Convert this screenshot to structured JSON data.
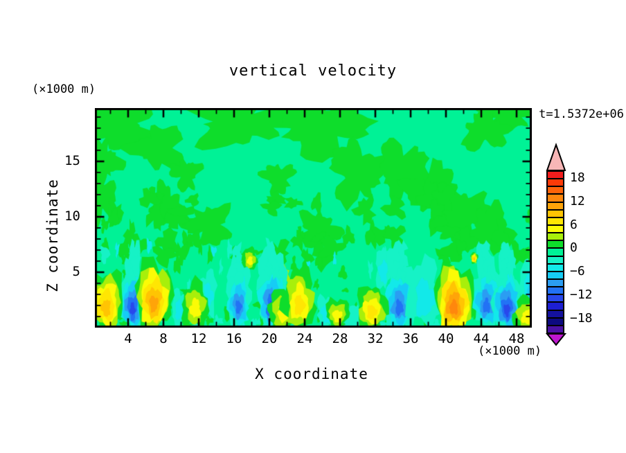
{
  "title": "vertical velocity",
  "time_label": "t=1.5372e+06",
  "axes": {
    "x_label": "X coordinate",
    "y_label": "Z coordinate",
    "x_unit_label": "(×1000 m)",
    "y_unit_label": "(×1000 m)",
    "x_ticks": [
      4,
      8,
      12,
      16,
      20,
      24,
      28,
      32,
      36,
      40,
      44,
      48
    ],
    "y_ticks": [
      5,
      10,
      15
    ],
    "x_minor_step": 2,
    "y_minor_step": 1,
    "x_range": [
      0.2,
      49.7
    ],
    "y_range": [
      0,
      19.8
    ]
  },
  "colorbar": {
    "labels": [
      "18",
      "12",
      "6",
      "0",
      "−6",
      "−12",
      "−18"
    ],
    "contour_interval": 2,
    "cell_colors": [
      "#f21d1d",
      "#fc3a08",
      "#ff6309",
      "#ff870d",
      "#ffa409",
      "#ffc403",
      "#ffe603",
      "#fbfb06",
      "#a8ef0b",
      "#0edd2b",
      "#00f296",
      "#16f2c6",
      "#12e9e9",
      "#16ccf5",
      "#2b9df2",
      "#2272f5",
      "#2848ec",
      "#1d1fd2",
      "#14119e",
      "#0d0a80",
      "#4c11a5"
    ],
    "over_arrow_color": "#f7b6b6",
    "under_arrow_color": "#bf17cf"
  },
  "chart_data": {
    "type": "filled_contour",
    "field_name": "vertical velocity",
    "background_band": [
      -2,
      0
    ],
    "contour_interval": 2,
    "updrafts": [
      {
        "x": 1.5,
        "z": 2.4,
        "rx": 2.0,
        "rz": 2.8,
        "peak": 10
      },
      {
        "x": 6.9,
        "z": 2.9,
        "rx": 2.1,
        "rz": 3.2,
        "peak": 11
      },
      {
        "x": 11.6,
        "z": 2.1,
        "rx": 1.5,
        "rz": 2.1,
        "peak": 5
      },
      {
        "x": 17.8,
        "z": 6.2,
        "rx": 0.8,
        "rz": 1.0,
        "peak": 5
      },
      {
        "x": 21.7,
        "z": 1.6,
        "rx": 2.0,
        "rz": 1.8,
        "peak": 6
      },
      {
        "x": 23.4,
        "z": 2.6,
        "rx": 1.8,
        "rz": 2.8,
        "peak": 8
      },
      {
        "x": 27.7,
        "z": 1.3,
        "rx": 1.3,
        "rz": 1.4,
        "peak": 6
      },
      {
        "x": 31.6,
        "z": 1.8,
        "rx": 1.7,
        "rz": 2.0,
        "peak": 7
      },
      {
        "x": 40.9,
        "z": 2.6,
        "rx": 2.2,
        "rz": 3.3,
        "peak": 13
      },
      {
        "x": 43.2,
        "z": 6.3,
        "rx": 0.4,
        "rz": 0.5,
        "peak": 9
      },
      {
        "x": 49.2,
        "z": 1.2,
        "rx": 1.6,
        "rz": 1.6,
        "peak": 5
      }
    ],
    "downdrafts": [
      {
        "x": 4.5,
        "z": 2.4,
        "rx": 1.4,
        "rz": 2.6,
        "peak": -13
      },
      {
        "x": 9.8,
        "z": 1.8,
        "rx": 0.9,
        "rz": 1.6,
        "peak": -6
      },
      {
        "x": 13.1,
        "z": 3.2,
        "rx": 0.9,
        "rz": 2.0,
        "peak": -5
      },
      {
        "x": 16.5,
        "z": 2.5,
        "rx": 1.3,
        "rz": 2.4,
        "peak": -12
      },
      {
        "x": 20.3,
        "z": 2.6,
        "rx": 1.6,
        "rz": 2.7,
        "peak": -13
      },
      {
        "x": 26.4,
        "z": 1.5,
        "rx": 1.0,
        "rz": 1.4,
        "peak": -6
      },
      {
        "x": 29.4,
        "z": 0.9,
        "rx": 1.0,
        "rz": 1.0,
        "peak": -4
      },
      {
        "x": 32.9,
        "z": 5.3,
        "rx": 0.9,
        "rz": 1.8,
        "peak": -5
      },
      {
        "x": 34.7,
        "z": 2.5,
        "rx": 1.7,
        "rz": 2.7,
        "peak": -11
      },
      {
        "x": 37.6,
        "z": 3.1,
        "rx": 1.9,
        "rz": 3.0,
        "peak": -6
      },
      {
        "x": 44.6,
        "z": 2.6,
        "rx": 1.6,
        "rz": 2.5,
        "peak": -11
      },
      {
        "x": 46.9,
        "z": 2.3,
        "rx": 1.6,
        "rz": 2.6,
        "peak": -13
      },
      {
        "x": 49.6,
        "z": 3.5,
        "rx": 1.2,
        "rz": 2.8,
        "peak": -7
      }
    ],
    "weak_positive_patches": [
      {
        "x": 3.0,
        "z": 18.3,
        "rx": 4.2,
        "rz": 2.3
      },
      {
        "x": 1.0,
        "z": 15.0,
        "rx": 1.8,
        "rz": 2.0
      },
      {
        "x": 7.5,
        "z": 16.2,
        "rx": 2.8,
        "rz": 1.8
      },
      {
        "x": 17.0,
        "z": 18.6,
        "rx": 5.5,
        "rz": 2.0
      },
      {
        "x": 26.0,
        "z": 18.2,
        "rx": 5.0,
        "rz": 2.4
      },
      {
        "x": 30.0,
        "z": 14.0,
        "rx": 3.0,
        "rz": 2.5
      },
      {
        "x": 35.0,
        "z": 14.5,
        "rx": 2.6,
        "rz": 2.2
      },
      {
        "x": 38.5,
        "z": 12.3,
        "rx": 2.8,
        "rz": 2.2
      },
      {
        "x": 42.0,
        "z": 10.3,
        "rx": 2.8,
        "rz": 2.2
      },
      {
        "x": 45.0,
        "z": 8.8,
        "rx": 2.4,
        "rz": 2.0
      },
      {
        "x": 47.0,
        "z": 19.3,
        "rx": 3.2,
        "rz": 1.4
      },
      {
        "x": 44.5,
        "z": 17.8,
        "rx": 2.4,
        "rz": 1.7
      },
      {
        "x": 0.8,
        "z": 11.8,
        "rx": 1.5,
        "rz": 2.2
      },
      {
        "x": 8.3,
        "z": 11.0,
        "rx": 1.7,
        "rz": 1.7
      },
      {
        "x": 13.2,
        "z": 9.3,
        "rx": 2.4,
        "rz": 1.7
      },
      {
        "x": 10.5,
        "z": 13.8,
        "rx": 1.5,
        "rz": 1.3
      },
      {
        "x": 25.5,
        "z": 8.8,
        "rx": 2.2,
        "rz": 1.5
      },
      {
        "x": 21.0,
        "z": 13.5,
        "rx": 1.6,
        "rz": 1.3
      }
    ]
  }
}
